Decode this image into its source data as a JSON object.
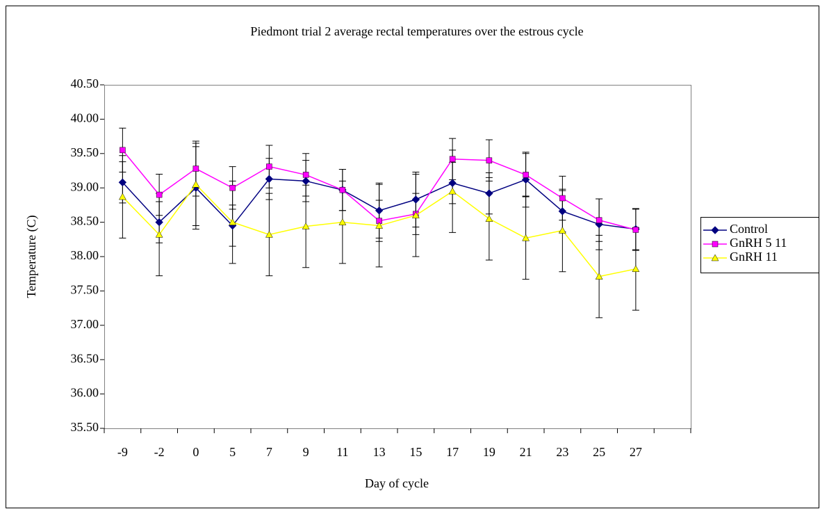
{
  "chart_data": {
    "type": "line",
    "title": "Piedmont trial 2 average rectal temperatures over the estrous cycle",
    "x_label": "Day of cycle",
    "y_label": "Temperature (C)",
    "categories": [
      "-9",
      "-2",
      "0",
      "5",
      "7",
      "9",
      "11",
      "13",
      "15",
      "17",
      "19",
      "21",
      "23",
      "25",
      "27",
      null
    ],
    "ylim": [
      35.5,
      40.5
    ],
    "yticks": [
      {
        "value": 35.5,
        "label": "35.50"
      },
      {
        "value": 36,
        "label": "36.00"
      },
      {
        "value": 36.5,
        "label": "36.50"
      },
      {
        "value": 37,
        "label": "37.00"
      },
      {
        "value": 37.5,
        "label": "37.50"
      },
      {
        "value": 38,
        "label": "38.00"
      },
      {
        "value": 38.5,
        "label": "38.50"
      },
      {
        "value": 39,
        "label": "39.00"
      },
      {
        "value": 39.5,
        "label": "39.50"
      },
      {
        "value": 40,
        "label": "40.00"
      },
      {
        "value": 40.5,
        "label": "40.50"
      }
    ],
    "grid": false,
    "legend": "right",
    "series": [
      {
        "name": "Control",
        "color": "#000080",
        "marker": "diamond",
        "values": [
          39.08,
          38.5,
          39.0,
          38.45,
          39.13,
          39.1,
          38.97,
          38.67,
          38.83,
          39.07,
          38.92,
          39.12,
          38.66,
          38.47,
          38.4,
          null
        ],
        "errors": [
          0.3,
          0.3,
          0.6,
          0.3,
          0.3,
          0.3,
          0.3,
          0.4,
          0.4,
          0.3,
          0.3,
          0.4,
          0.3,
          0.37,
          0.3,
          null
        ]
      },
      {
        "name": "GnRH 5 11",
        "color": "#ff00ff",
        "marker": "square",
        "values": [
          39.55,
          38.9,
          39.28,
          39.0,
          39.31,
          39.19,
          38.97,
          38.52,
          38.62,
          39.42,
          39.4,
          39.19,
          38.85,
          38.53,
          38.39,
          null
        ],
        "errors": [
          0.32,
          0.3,
          0.4,
          0.31,
          0.31,
          0.31,
          0.3,
          0.3,
          0.3,
          0.3,
          0.3,
          0.31,
          0.32,
          0.31,
          0.3,
          null
        ]
      },
      {
        "name": "GnRH 11",
        "color": "#ffff00",
        "marker": "triangle",
        "values": [
          38.87,
          38.32,
          39.05,
          38.5,
          38.32,
          38.44,
          38.5,
          38.45,
          38.6,
          38.95,
          38.55,
          38.27,
          38.38,
          37.71,
          37.82,
          null
        ],
        "errors": [
          0.6,
          0.6,
          0.6,
          0.6,
          0.6,
          0.6,
          0.6,
          0.6,
          0.6,
          0.6,
          0.6,
          0.6,
          0.6,
          0.6,
          0.6,
          null
        ]
      }
    ]
  }
}
